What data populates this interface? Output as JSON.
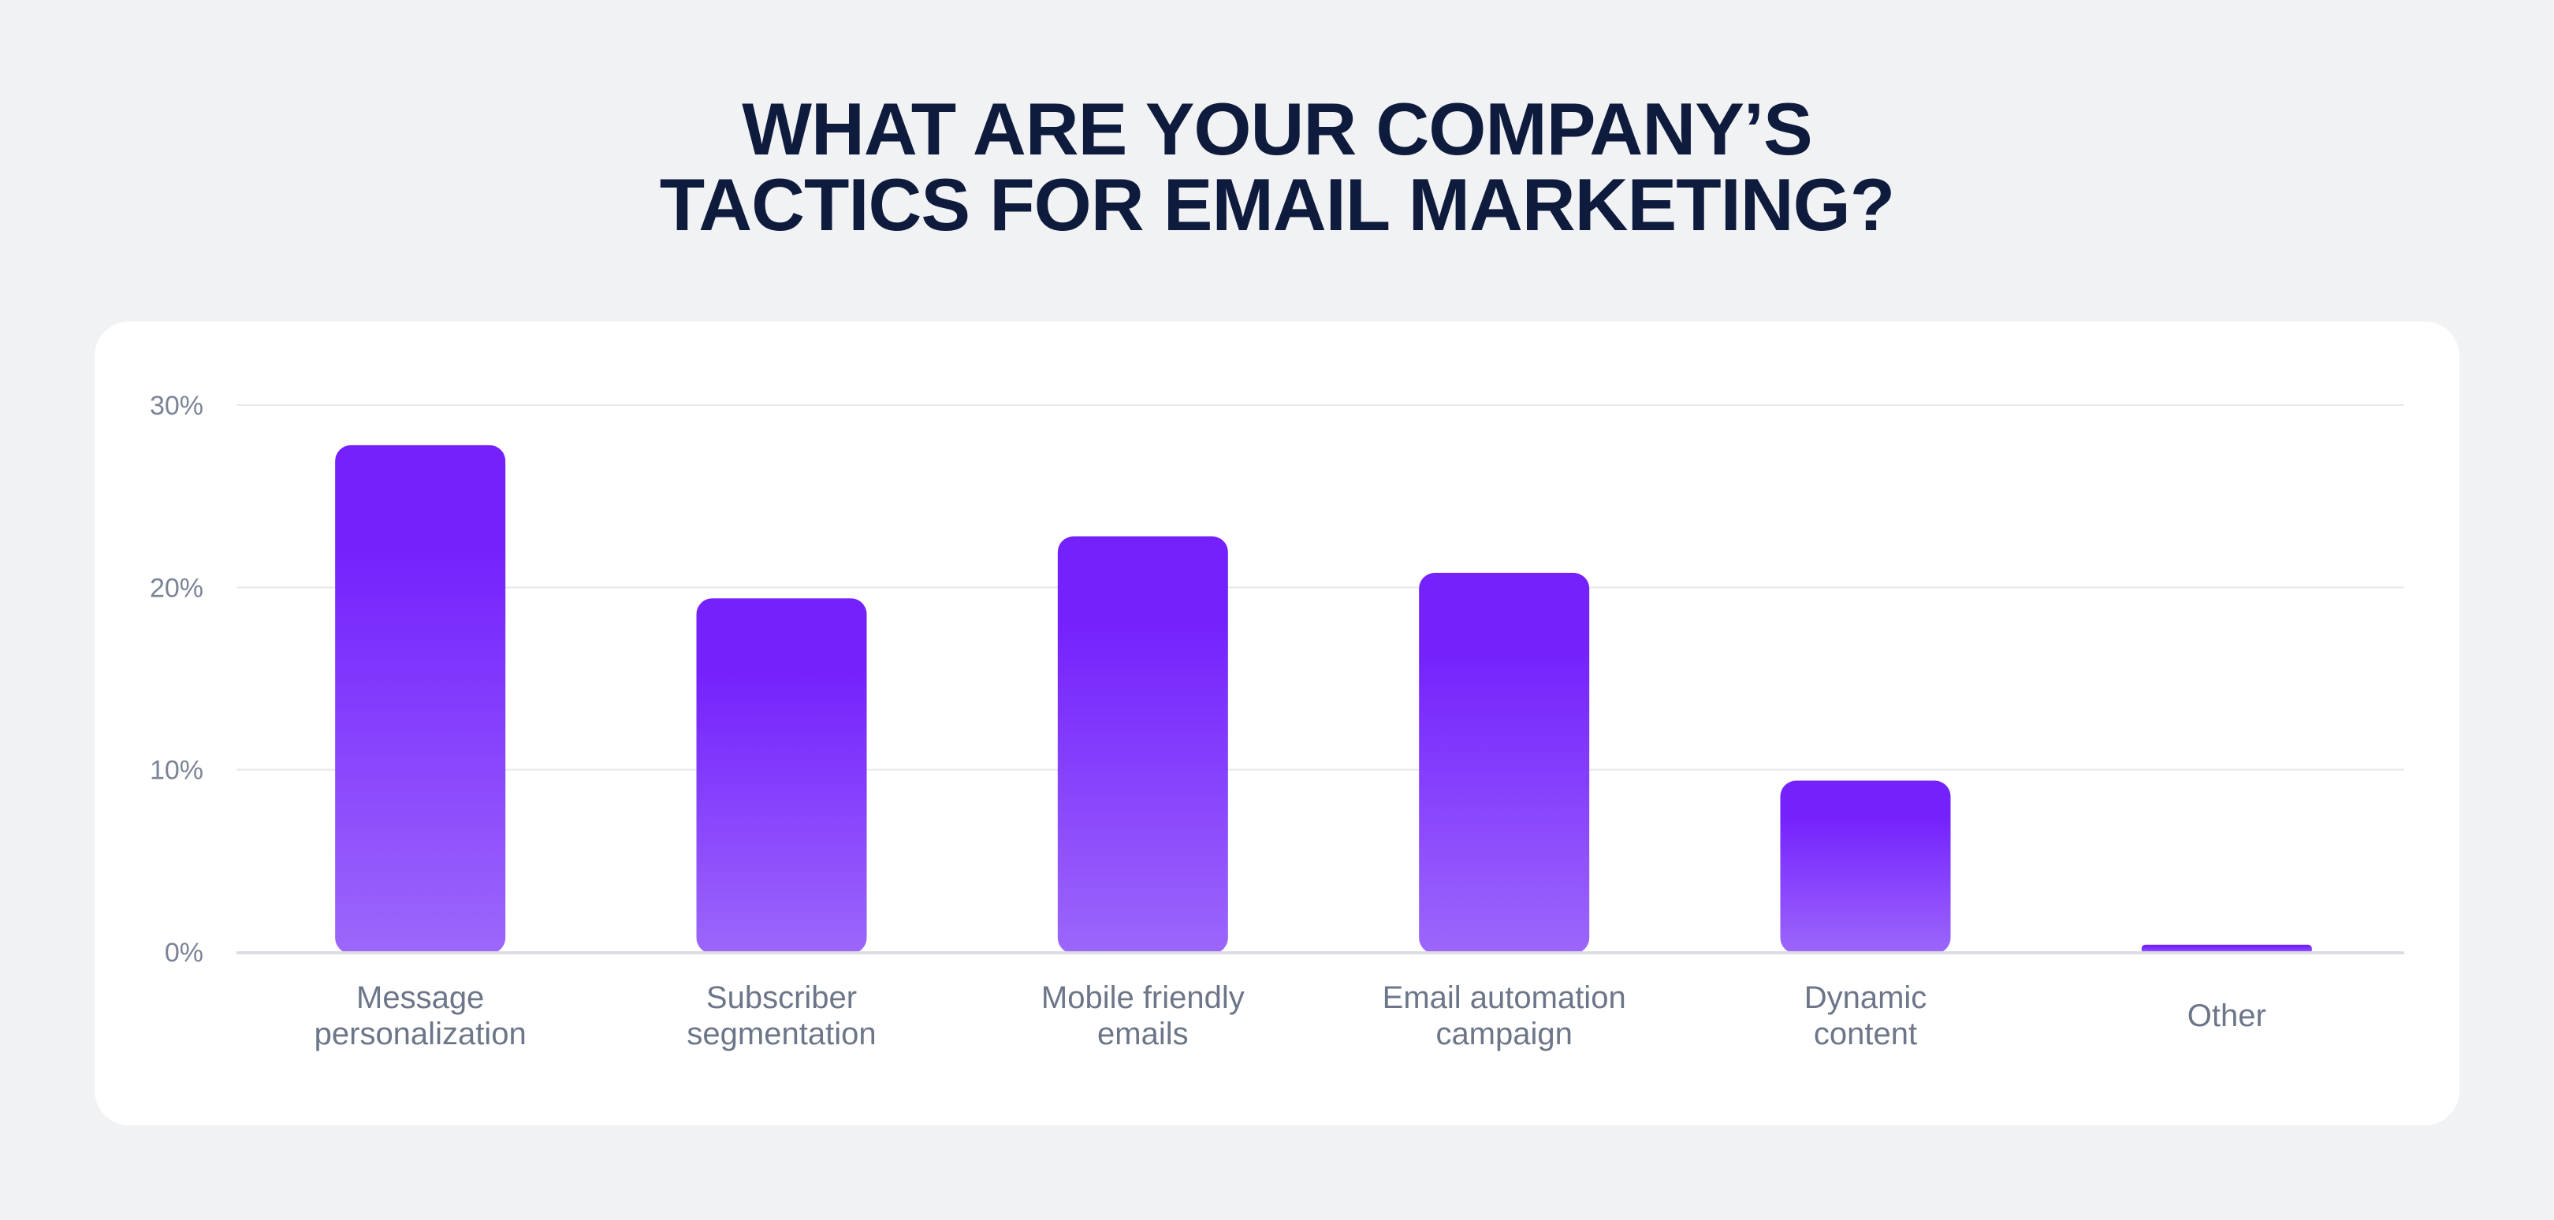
{
  "title_line1": "WHAT ARE YOUR COMPANY’S",
  "title_line2": "TACTICS FOR EMAIL MARKETING?",
  "colors": {
    "background": "#f1f2f4",
    "card": "#ffffff",
    "title": "#0e1b3d",
    "bar_top": "#7421fc",
    "bar_bottom": "#9c67fb",
    "axis_text": "#7b8496",
    "category_text": "#6c7688",
    "gridline": "#e7e8ec",
    "baseline": "#dcdde2"
  },
  "chart_data": {
    "type": "bar",
    "title": "WHAT ARE YOUR COMPANY’S TACTICS FOR EMAIL MARKETING?",
    "xlabel": "",
    "ylabel": "",
    "categories": [
      [
        "Message",
        "personalization"
      ],
      [
        "Subscriber",
        "segmentation"
      ],
      [
        "Mobile friendly",
        "emails"
      ],
      [
        "Email automation",
        "campaign"
      ],
      [
        "Dynamic",
        "content"
      ],
      [
        "Other"
      ]
    ],
    "values": [
      27.8,
      19.4,
      22.8,
      20.8,
      9.4,
      0.4
    ],
    "ylim": [
      0,
      30
    ],
    "yticks": [
      0,
      10,
      20,
      30
    ],
    "ytick_labels": [
      "0%",
      "10%",
      "20%",
      "30%"
    ],
    "grid": true,
    "legend": "none"
  }
}
